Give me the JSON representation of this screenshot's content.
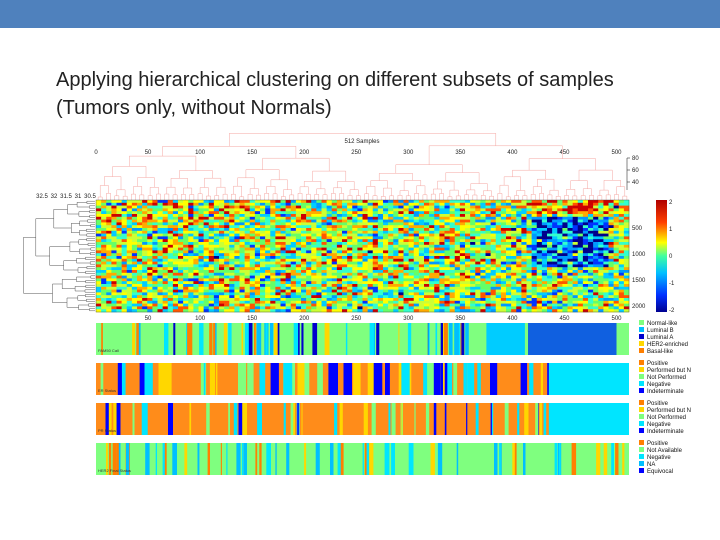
{
  "slide": {
    "title_line1": "Applying hierarchical clustering on different subsets of samples",
    "title_line2": "(Tumors only, without Normals)"
  },
  "figure": {
    "title": "512 Samples",
    "top_ticks": [
      "0",
      "50",
      "100",
      "150",
      "200",
      "250",
      "300",
      "350",
      "400",
      "450",
      "500"
    ],
    "bottom_ticks": [
      "50",
      "100",
      "150",
      "200",
      "250",
      "300",
      "350",
      "400",
      "450",
      "500"
    ],
    "height_ticks": [
      "80",
      "60",
      "40"
    ],
    "gene_height_ticks": [
      "32.5",
      "32",
      "31.5",
      "31",
      "30.5"
    ],
    "row_ticks": [
      "500",
      "1000",
      "1500",
      "2000"
    ],
    "colorbar_ticks": [
      "2",
      "1",
      "0",
      "-1",
      "-2"
    ],
    "track_captions": [
      "PAM50 Call",
      "ER Status",
      "PR Status",
      "HER2 Final Status"
    ],
    "legends": [
      [
        {
          "label": "Normal-like",
          "color": "#7fff7f"
        },
        {
          "label": "Luminal B",
          "color": "#00bfff"
        },
        {
          "label": "Luminal A",
          "color": "#0000cd"
        },
        {
          "label": "HER2-enriched",
          "color": "#ffd700"
        },
        {
          "label": "Basal-like",
          "color": "#ff7f00"
        }
      ],
      [
        {
          "label": "Positive",
          "color": "#ff7f00"
        },
        {
          "label": "Performed but N",
          "color": "#ffd700"
        },
        {
          "label": "Not Performed",
          "color": "#7fff7f"
        },
        {
          "label": "Negative",
          "color": "#00e5ff"
        },
        {
          "label": "Indeterminate",
          "color": "#0000ff"
        }
      ],
      [
        {
          "label": "Positive",
          "color": "#ff7f00"
        },
        {
          "label": "Performed but N",
          "color": "#ffd700"
        },
        {
          "label": "Not Performed",
          "color": "#7fff7f"
        },
        {
          "label": "Negative",
          "color": "#00e5ff"
        },
        {
          "label": "Indeterminate",
          "color": "#0000ff"
        }
      ],
      [
        {
          "label": "Positive",
          "color": "#ff7f00"
        },
        {
          "label": "Not Available",
          "color": "#7fff7f"
        },
        {
          "label": "Negative",
          "color": "#00e5ff"
        },
        {
          "label": "NA",
          "color": "#00bfff"
        },
        {
          "label": "Equivocal",
          "color": "#0000ff"
        }
      ]
    ]
  },
  "colors": {
    "topbar": "#4f81bd",
    "dendro_top": "#f4a6a0",
    "dendro_left": "#555555",
    "track_base": [
      "#7fff7f",
      "#ff8c1a",
      "#ff8c1a",
      "#7fff7f"
    ]
  }
}
